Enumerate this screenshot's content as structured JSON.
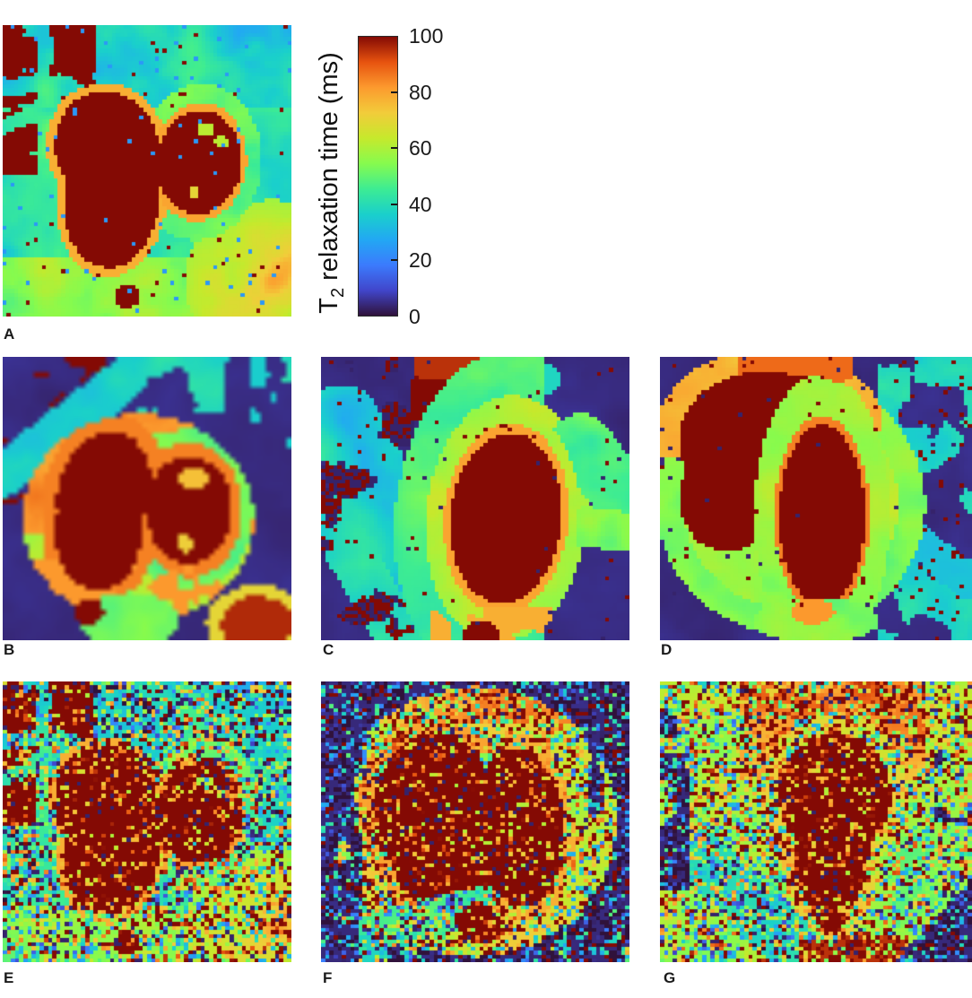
{
  "figure": {
    "colorbar": {
      "title_prefix": "T",
      "title_subscript": "2",
      "title_suffix": " relaxation time (ms)",
      "min": 0,
      "max": 100,
      "ticks": [
        {
          "label": "100",
          "value": 100
        },
        {
          "label": "80",
          "value": 80
        },
        {
          "label": "60",
          "value": 60
        },
        {
          "label": "40",
          "value": 40
        },
        {
          "label": "20",
          "value": 20
        },
        {
          "label": "0",
          "value": 0
        }
      ],
      "colormap_stops": [
        "#30123b",
        "#4146cb",
        "#3b7bfd",
        "#22a8f3",
        "#1ad0cb",
        "#3dec93",
        "#86fb4e",
        "#c6e92c",
        "#f2cc3a",
        "#fc9a2e",
        "#e7530f",
        "#840a04"
      ]
    },
    "panels": [
      {
        "label": "A"
      },
      {
        "label": "B"
      },
      {
        "label": "C"
      },
      {
        "label": "D"
      },
      {
        "label": "E"
      },
      {
        "label": "F"
      },
      {
        "label": "G"
      }
    ]
  }
}
